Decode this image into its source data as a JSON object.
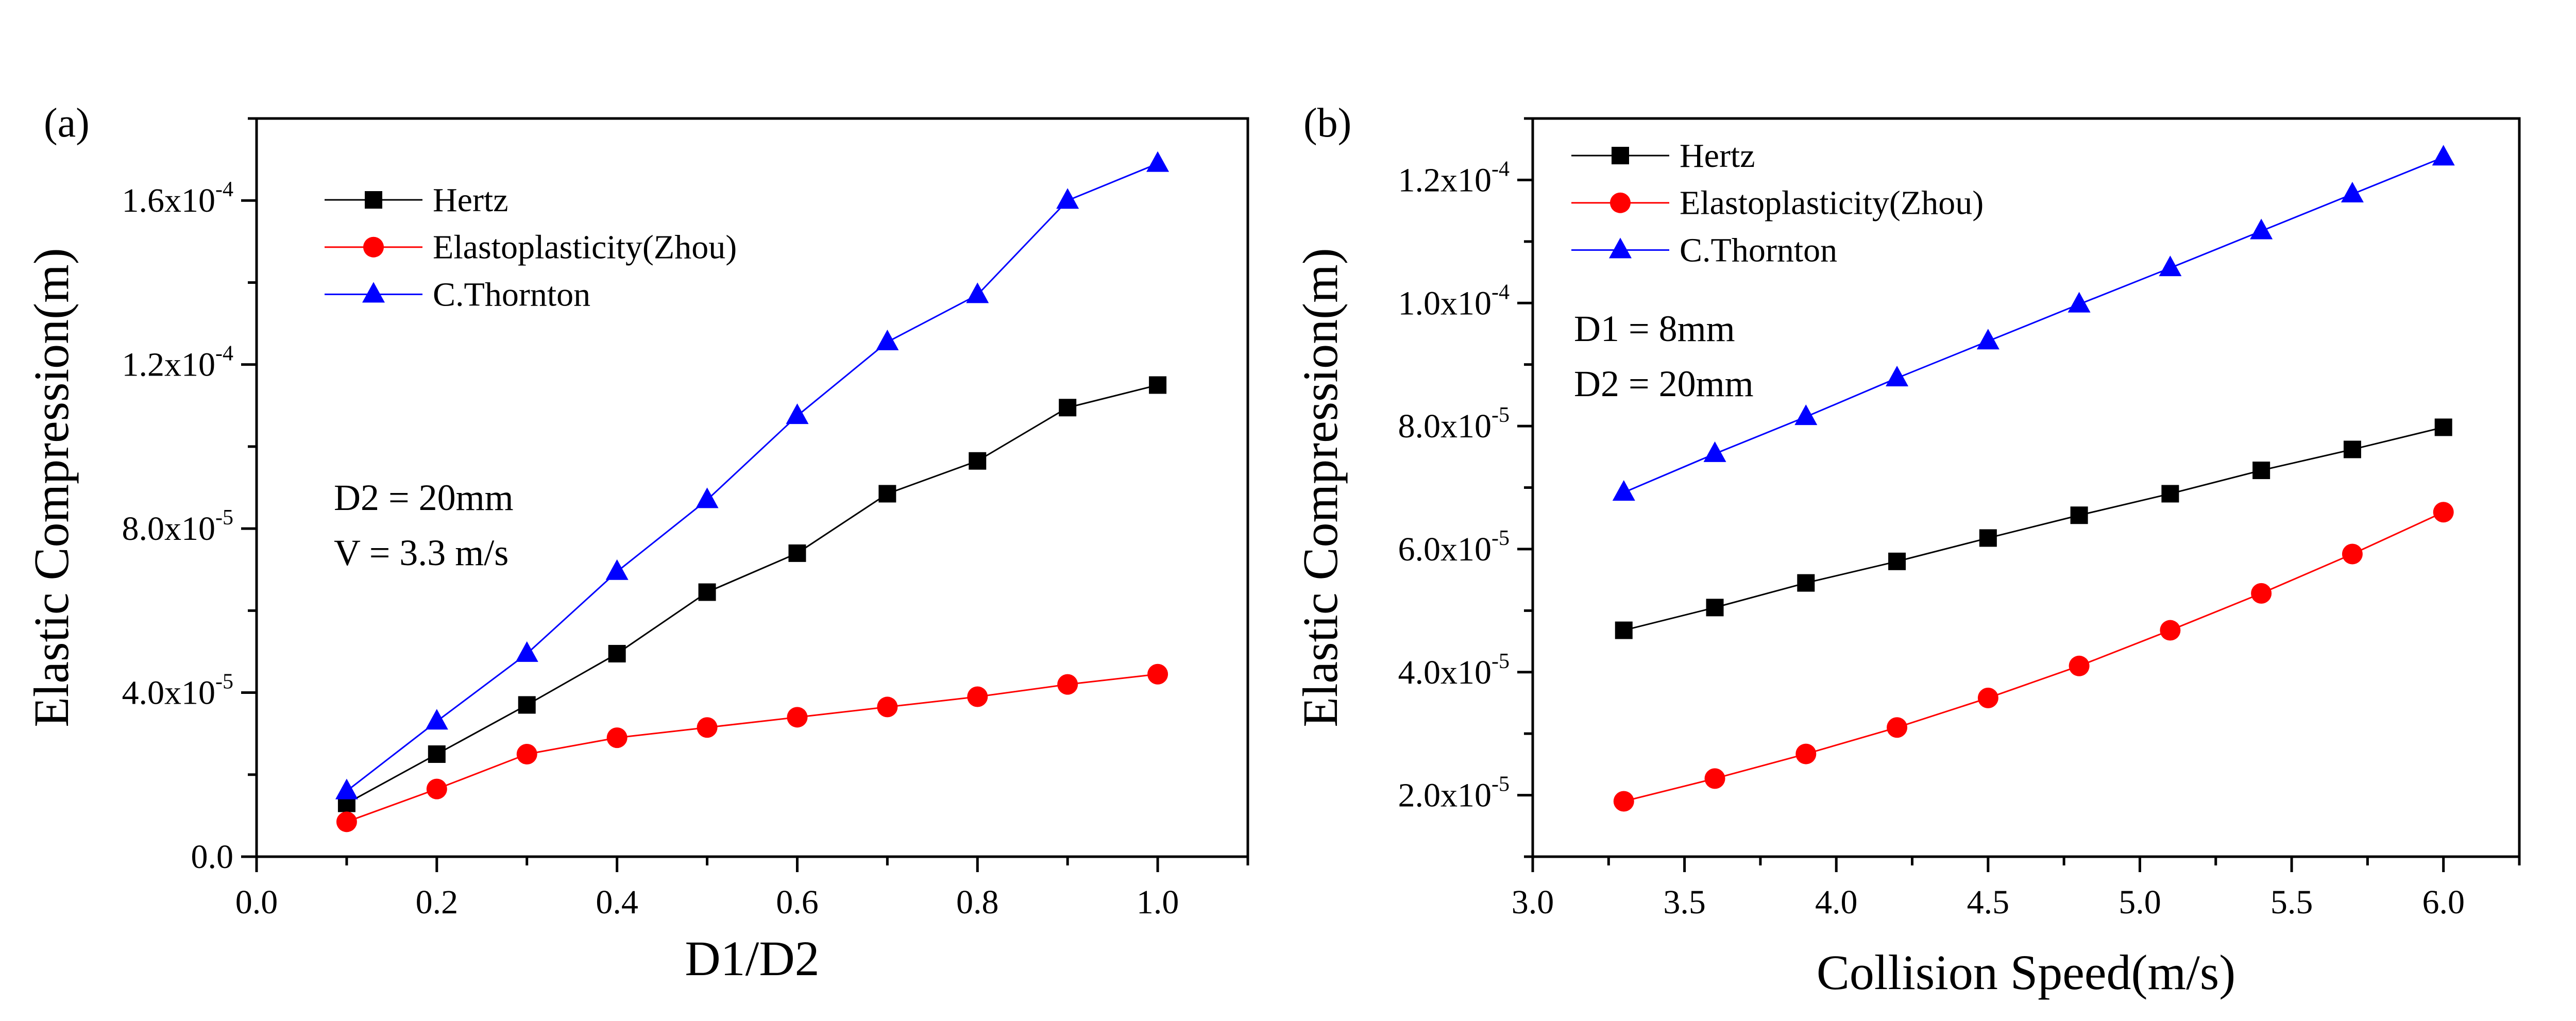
{
  "chart_data": [
    {
      "type": "line",
      "panel_label": "(a)",
      "xlabel": "D1/D2",
      "ylabel": "Elastic Compression(m)",
      "xlim": [
        0.0,
        1.1
      ],
      "ylim": [
        0,
        0.00018
      ],
      "x_ticks": [
        {
          "value": 0.0,
          "label": "0.0"
        },
        {
          "value": 0.2,
          "label": "0.2"
        },
        {
          "value": 0.4,
          "label": "0.4"
        },
        {
          "value": 0.6,
          "label": "0.6"
        },
        {
          "value": 0.8,
          "label": "0.8"
        },
        {
          "value": 1.0,
          "label": "1.0"
        }
      ],
      "y_ticks": [
        {
          "value": 0,
          "mantissa": "0.0",
          "exponent": ""
        },
        {
          "value": 4e-05,
          "mantissa": "4.0x10",
          "exponent": "-5"
        },
        {
          "value": 8e-05,
          "mantissa": "8.0x10",
          "exponent": "-5"
        },
        {
          "value": 0.00012,
          "mantissa": "1.2x10",
          "exponent": "-4"
        },
        {
          "value": 0.00016,
          "mantissa": "1.6x10",
          "exponent": "-4"
        }
      ],
      "grid": false,
      "legend_position": "top-left",
      "annotations": [
        "D2 = 20mm",
        "V = 3.3 m/s"
      ],
      "x": [
        0.1,
        0.2,
        0.3,
        0.4,
        0.5,
        0.6,
        0.7,
        0.8,
        0.9,
        1.0
      ],
      "series": [
        {
          "name": "Hertz",
          "color": "#000000",
          "marker": "square",
          "values": [
            1.3e-05,
            2.5e-05,
            3.7e-05,
            4.95e-05,
            6.45e-05,
            7.4e-05,
            8.85e-05,
            9.65e-05,
            0.0001095,
            0.000115
          ]
        },
        {
          "name": "Elastoplasticity(Zhou)",
          "color": "#ff0000",
          "marker": "circle",
          "values": [
            8.5e-06,
            1.65e-05,
            2.5e-05,
            2.9e-05,
            3.15e-05,
            3.4e-05,
            3.65e-05,
            3.9e-05,
            4.2e-05,
            4.45e-05
          ]
        },
        {
          "name": "C.Thornton",
          "color": "#0000ff",
          "marker": "triangle",
          "values": [
            1.6e-05,
            3.3e-05,
            4.95e-05,
            6.95e-05,
            8.7e-05,
            0.0001075,
            0.0001255,
            0.000137,
            0.00016,
            0.000169
          ]
        }
      ]
    },
    {
      "type": "line",
      "panel_label": "(b)",
      "xlabel": "Collision Speed(m/s)",
      "ylabel": "Elastic Compression(m)",
      "xlim": [
        3.0,
        6.25
      ],
      "ylim": [
        1e-05,
        0.00013
      ],
      "x_ticks": [
        {
          "value": 3.0,
          "label": "3.0"
        },
        {
          "value": 3.5,
          "label": "3.5"
        },
        {
          "value": 4.0,
          "label": "4.0"
        },
        {
          "value": 4.5,
          "label": "4.5"
        },
        {
          "value": 5.0,
          "label": "5.0"
        },
        {
          "value": 5.5,
          "label": "5.5"
        },
        {
          "value": 6.0,
          "label": "6.0"
        }
      ],
      "y_ticks": [
        {
          "value": 2e-05,
          "mantissa": "2.0x10",
          "exponent": "-5"
        },
        {
          "value": 4e-05,
          "mantissa": "4.0x10",
          "exponent": "-5"
        },
        {
          "value": 6e-05,
          "mantissa": "6.0x10",
          "exponent": "-5"
        },
        {
          "value": 8e-05,
          "mantissa": "8.0x10",
          "exponent": "-5"
        },
        {
          "value": 0.0001,
          "mantissa": "1.0x10",
          "exponent": "-4"
        },
        {
          "value": 0.00012,
          "mantissa": "1.2x10",
          "exponent": "-4"
        }
      ],
      "grid": false,
      "legend_position": "top-left",
      "annotations": [
        "D1 = 8mm",
        "D2 = 20mm"
      ],
      "x": [
        3.3,
        3.6,
        3.9,
        4.2,
        4.5,
        4.8,
        5.1,
        5.4,
        5.7,
        6.0
      ],
      "series": [
        {
          "name": "Hertz",
          "color": "#000000",
          "marker": "square",
          "values": [
            4.68e-05,
            5.05e-05,
            5.45e-05,
            5.8e-05,
            6.18e-05,
            6.55e-05,
            6.9e-05,
            7.28e-05,
            7.62e-05,
            7.98e-05
          ]
        },
        {
          "name": "Elastoplasticity(Zhou)",
          "color": "#ff0000",
          "marker": "circle",
          "values": [
            1.9e-05,
            2.27e-05,
            2.67e-05,
            3.1e-05,
            3.58e-05,
            4.1e-05,
            4.68e-05,
            5.28e-05,
            5.92e-05,
            6.6e-05
          ]
        },
        {
          "name": "C.Thornton",
          "color": "#0000ff",
          "marker": "triangle",
          "values": [
            6.92e-05,
            7.55e-05,
            8.15e-05,
            8.78e-05,
            9.38e-05,
            9.98e-05,
            0.0001057,
            0.0001117,
            0.0001177,
            0.0001237
          ]
        }
      ]
    }
  ]
}
